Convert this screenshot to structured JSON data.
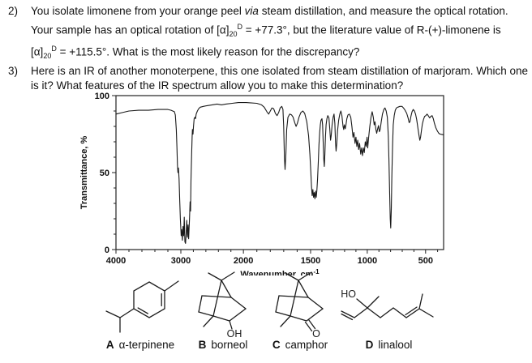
{
  "page": {
    "background": "#ffffff",
    "text_color": "#111111",
    "curve_color": "#1a1a1a"
  },
  "questions": {
    "q2": {
      "number": "2)",
      "part1": "You isolate limonene from your orange peel ",
      "via": "via",
      "part2": " steam distillation, and measure the optical rotation. Your sample has an optical rotation of [α]",
      "sub1": "20",
      "sup1": "D",
      "part3": " = +77.3°, but the literature value of R-(+)-limonene is [α]",
      "sub2": "20",
      "sup2": "D",
      "part4": " = +115.5°. What is the most likely reason for the discrepancy?"
    },
    "q3": {
      "number": "3)",
      "text": "Here is an IR of another monoterpene, this one isolated from steam distillation of marjoram. Which one is it? What features of the IR spectrum allow you to make this determination?"
    }
  },
  "chart": {
    "ylabel": "Transmittance, %",
    "xlabel": "Wavenumber, cm",
    "xlabel_sup": "-1"
  },
  "chart_data": {
    "type": "line",
    "title": "",
    "xlabel": "Wavenumber, cm⁻¹",
    "ylabel": "Transmittance, %",
    "x_ticks": [
      4000,
      3000,
      2000,
      1500,
      1000,
      500
    ],
    "y_ticks": [
      100,
      50,
      0
    ],
    "xlim": [
      4000,
      350
    ],
    "ylim": [
      0,
      100
    ],
    "grid": false,
    "legend": "none",
    "x_axis_note": "wavenumber axis reversed and compressed above 2000 cm-1 (typical IR scale break at 2000)",
    "series": [
      {
        "name": "IR spectrum",
        "points": [
          [
            4000,
            88
          ],
          [
            3900,
            89
          ],
          [
            3800,
            90
          ],
          [
            3650,
            90.5
          ],
          [
            3500,
            90.5
          ],
          [
            3350,
            91
          ],
          [
            3200,
            91
          ],
          [
            3150,
            90.5
          ],
          [
            3100,
            89.5
          ],
          [
            3085,
            87.5
          ],
          [
            3070,
            78
          ],
          [
            3060,
            66
          ],
          [
            3052,
            55
          ],
          [
            3045,
            50
          ],
          [
            3038,
            53
          ],
          [
            3028,
            46
          ],
          [
            3018,
            32
          ],
          [
            3008,
            20
          ],
          [
            2995,
            9
          ],
          [
            2985,
            13
          ],
          [
            2975,
            6
          ],
          [
            2965,
            15
          ],
          [
            2955,
            9
          ],
          [
            2945,
            21
          ],
          [
            2935,
            5
          ],
          [
            2925,
            4
          ],
          [
            2915,
            11
          ],
          [
            2905,
            19
          ],
          [
            2895,
            8
          ],
          [
            2885,
            16
          ],
          [
            2875,
            7
          ],
          [
            2862,
            19
          ],
          [
            2852,
            31
          ],
          [
            2845,
            25
          ],
          [
            2838,
            45
          ],
          [
            2828,
            62
          ],
          [
            2820,
            73
          ],
          [
            2814,
            78
          ],
          [
            2806,
            75
          ],
          [
            2798,
            80
          ],
          [
            2788,
            85
          ],
          [
            2775,
            86
          ],
          [
            2765,
            85
          ],
          [
            2755,
            88
          ],
          [
            2735,
            90
          ],
          [
            2715,
            91.5
          ],
          [
            2690,
            92.5
          ],
          [
            2640,
            93
          ],
          [
            2580,
            93.5
          ],
          [
            2500,
            94
          ],
          [
            2420,
            94.5
          ],
          [
            2350,
            94
          ],
          [
            2280,
            94.5
          ],
          [
            2180,
            95
          ],
          [
            2080,
            95.5
          ],
          [
            1980,
            95.5
          ],
          [
            1900,
            95
          ],
          [
            1865,
            94
          ],
          [
            1845,
            92.5
          ],
          [
            1825,
            89.5
          ],
          [
            1812,
            88
          ],
          [
            1800,
            90
          ],
          [
            1788,
            92
          ],
          [
            1775,
            91.5
          ],
          [
            1762,
            88.5
          ],
          [
            1750,
            87
          ],
          [
            1738,
            89
          ],
          [
            1726,
            92
          ],
          [
            1714,
            93
          ],
          [
            1706,
            91
          ],
          [
            1700,
            80
          ],
          [
            1695,
            60
          ],
          [
            1690,
            52
          ],
          [
            1684,
            62
          ],
          [
            1678,
            78
          ],
          [
            1668,
            86
          ],
          [
            1655,
            88
          ],
          [
            1642,
            87.5
          ],
          [
            1630,
            86
          ],
          [
            1618,
            82.5
          ],
          [
            1608,
            80
          ],
          [
            1598,
            82
          ],
          [
            1586,
            86
          ],
          [
            1572,
            89
          ],
          [
            1558,
            90
          ],
          [
            1544,
            88.5
          ],
          [
            1528,
            83
          ],
          [
            1515,
            74
          ],
          [
            1505,
            62
          ],
          [
            1498,
            50
          ],
          [
            1492,
            41
          ],
          [
            1486,
            35
          ],
          [
            1480,
            39
          ],
          [
            1474,
            34
          ],
          [
            1468,
            37
          ],
          [
            1462,
            33
          ],
          [
            1456,
            38
          ],
          [
            1450,
            34
          ],
          [
            1444,
            39
          ],
          [
            1438,
            46
          ],
          [
            1432,
            57
          ],
          [
            1426,
            68
          ],
          [
            1420,
            76
          ],
          [
            1414,
            81
          ],
          [
            1408,
            84
          ],
          [
            1400,
            85
          ],
          [
            1394,
            81
          ],
          [
            1389,
            70
          ],
          [
            1384,
            59
          ],
          [
            1379,
            54
          ],
          [
            1374,
            62
          ],
          [
            1369,
            73
          ],
          [
            1363,
            81
          ],
          [
            1356,
            85
          ],
          [
            1348,
            87
          ],
          [
            1338,
            85.5
          ],
          [
            1330,
            78
          ],
          [
            1324,
            71
          ],
          [
            1318,
            74
          ],
          [
            1310,
            81
          ],
          [
            1301,
            86
          ],
          [
            1293,
            88
          ],
          [
            1286,
            82
          ],
          [
            1280,
            70
          ],
          [
            1275,
            64
          ],
          [
            1269,
            69
          ],
          [
            1262,
            77
          ],
          [
            1252,
            84
          ],
          [
            1242,
            88
          ],
          [
            1233,
            90
          ],
          [
            1224,
            87
          ],
          [
            1214,
            80
          ],
          [
            1208,
            78
          ],
          [
            1202,
            81
          ],
          [
            1194,
            78.5
          ],
          [
            1188,
            81
          ],
          [
            1180,
            85
          ],
          [
            1170,
            87.5
          ],
          [
            1158,
            88
          ],
          [
            1146,
            86
          ],
          [
            1136,
            80
          ],
          [
            1126,
            73
          ],
          [
            1118,
            76
          ],
          [
            1108,
            69
          ],
          [
            1100,
            73
          ],
          [
            1092,
            67
          ],
          [
            1084,
            71
          ],
          [
            1076,
            65
          ],
          [
            1068,
            69
          ],
          [
            1058,
            62
          ],
          [
            1050,
            66
          ],
          [
            1042,
            61
          ],
          [
            1034,
            66
          ],
          [
            1026,
            63
          ],
          [
            1018,
            70
          ],
          [
            1010,
            67
          ],
          [
            1002,
            73
          ],
          [
            996,
            66
          ],
          [
            988,
            73
          ],
          [
            978,
            80
          ],
          [
            968,
            86
          ],
          [
            958,
            89.5
          ],
          [
            948,
            86
          ],
          [
            941,
            81
          ],
          [
            934,
            83
          ],
          [
            926,
            78
          ],
          [
            919,
            75.5
          ],
          [
            912,
            78
          ],
          [
            904,
            80.5
          ],
          [
            896,
            76.5
          ],
          [
            889,
            78
          ],
          [
            880,
            83
          ],
          [
            870,
            88
          ],
          [
            858,
            91
          ],
          [
            848,
            92
          ],
          [
            838,
            90
          ],
          [
            828,
            86
          ],
          [
            820,
            74
          ],
          [
            814,
            58
          ],
          [
            808,
            36
          ],
          [
            803,
            20
          ],
          [
            799,
            14
          ],
          [
            794,
            26
          ],
          [
            789,
            48
          ],
          [
            783,
            68
          ],
          [
            777,
            81
          ],
          [
            769,
            87
          ],
          [
            760,
            90.5
          ],
          [
            750,
            92
          ],
          [
            738,
            92.5
          ],
          [
            720,
            93
          ],
          [
            702,
            93
          ],
          [
            690,
            92
          ],
          [
            676,
            90.5
          ],
          [
            662,
            88.5
          ],
          [
            650,
            85.5
          ],
          [
            641,
            82.5
          ],
          [
            634,
            83
          ],
          [
            626,
            86.5
          ],
          [
            616,
            89.5
          ],
          [
            606,
            91
          ],
          [
            596,
            90
          ],
          [
            586,
            88
          ],
          [
            576,
            84.5
          ],
          [
            566,
            79
          ],
          [
            556,
            74
          ],
          [
            549,
            71
          ],
          [
            543,
            73
          ],
          [
            536,
            77
          ],
          [
            528,
            81.5
          ],
          [
            518,
            84.5
          ],
          [
            508,
            86.5
          ],
          [
            498,
            87
          ],
          [
            488,
            88
          ],
          [
            478,
            87
          ],
          [
            466,
            85.5
          ],
          [
            456,
            86.5
          ],
          [
            446,
            87
          ],
          [
            436,
            85
          ],
          [
            426,
            82
          ],
          [
            414,
            79
          ],
          [
            402,
            77
          ],
          [
            390,
            75.5
          ],
          [
            380,
            75
          ],
          [
            365,
            74.8
          ],
          [
            352,
            74.6
          ]
        ]
      }
    ]
  },
  "structures": [
    {
      "letter": "A",
      "name": "α-terpinene"
    },
    {
      "letter": "B",
      "name": "borneol"
    },
    {
      "letter": "C",
      "name": "camphor"
    },
    {
      "letter": "D",
      "name": "linalool"
    }
  ],
  "atom_labels": {
    "b_oh": "OH",
    "c_o": "O",
    "d_ho": "HO"
  }
}
